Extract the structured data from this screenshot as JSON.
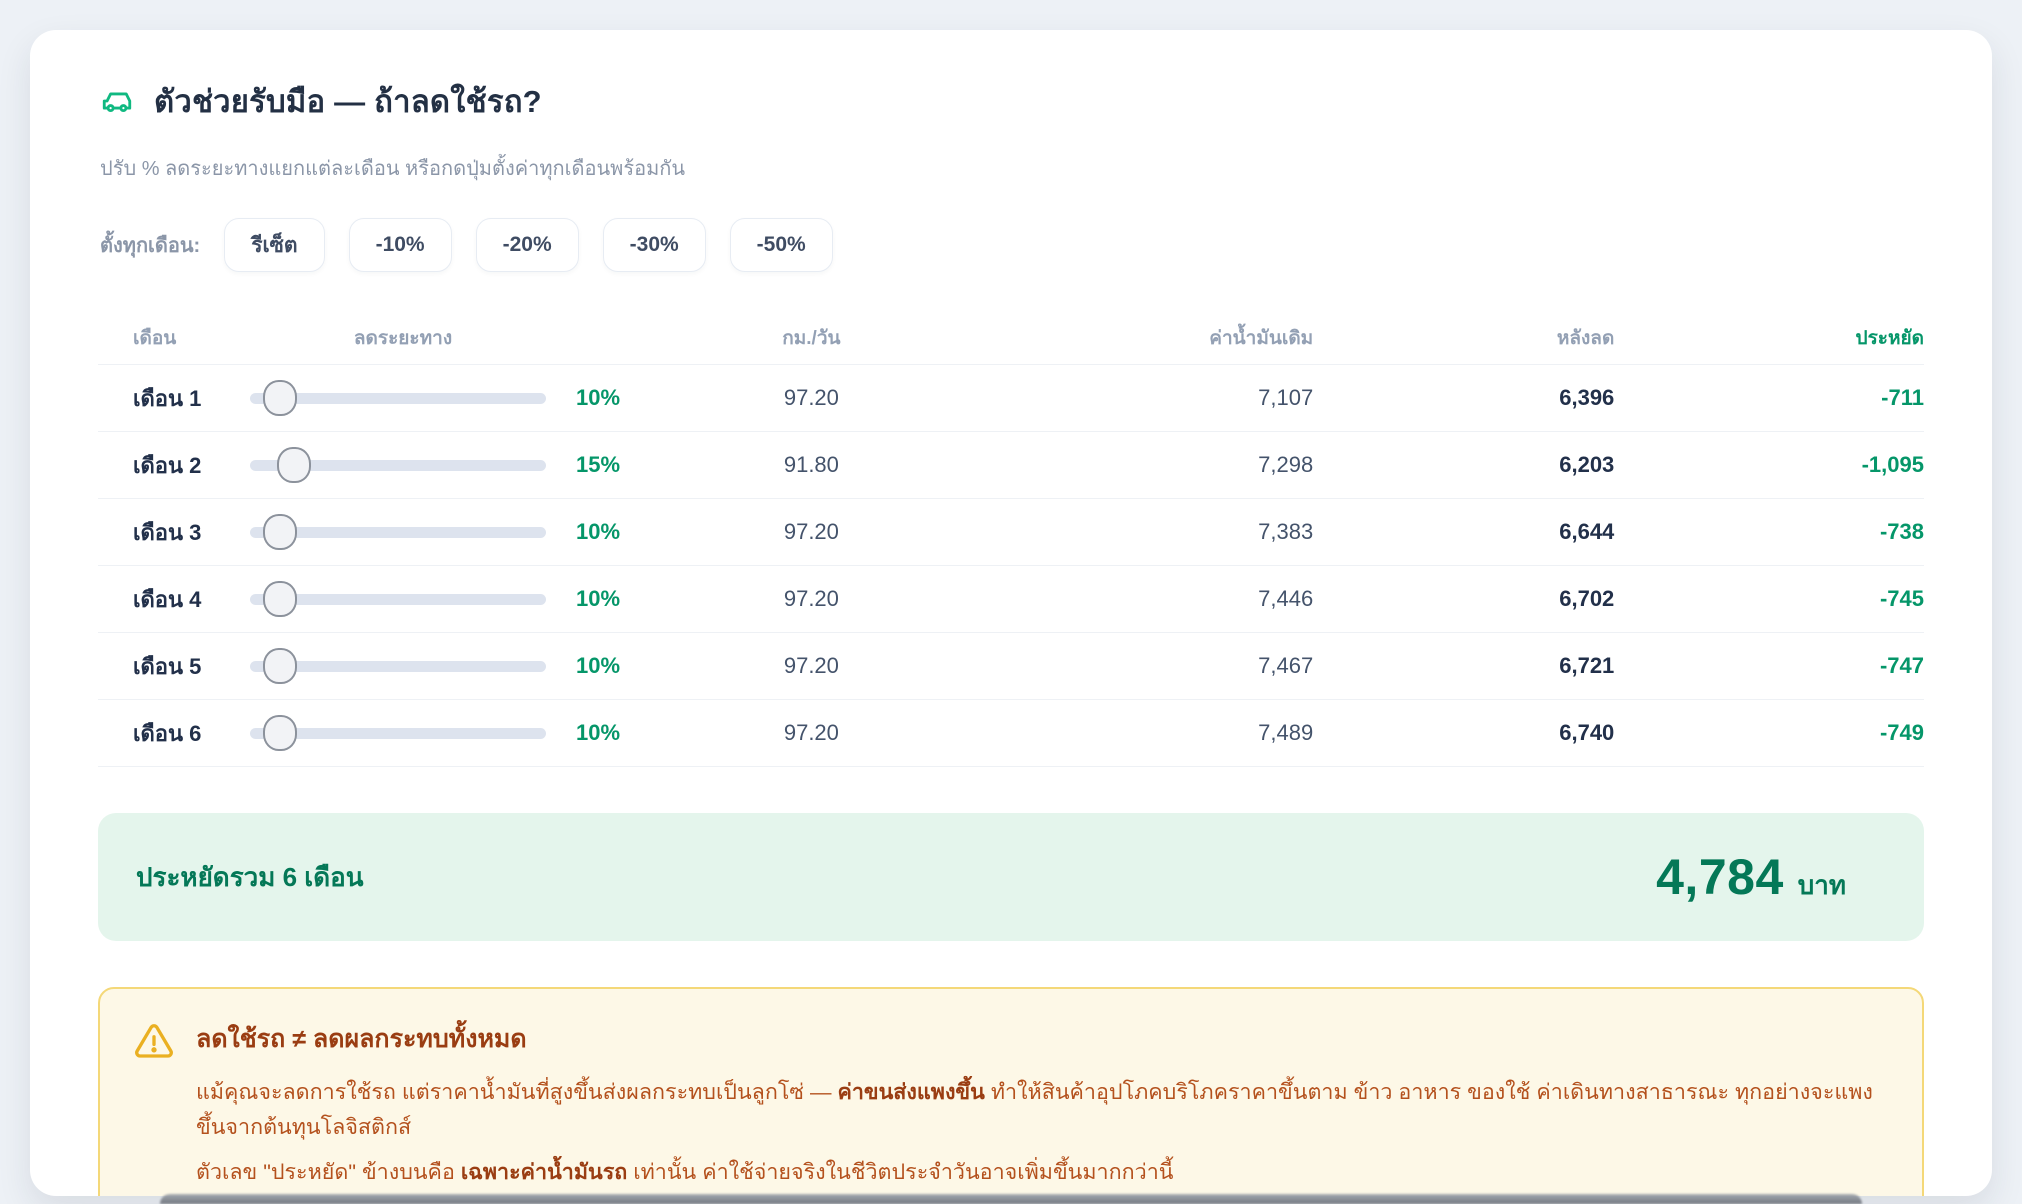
{
  "header": {
    "title": "ตัวช่วยรับมือ — ถ้าลดใช้รถ?",
    "subtitle": "ปรับ % ลดระยะทางแยกแต่ละเดือน หรือกดปุ่มตั้งค่าทุกเดือนพร้อมกัน"
  },
  "quick_set": {
    "label": "ตั้งทุกเดือน:",
    "buttons": [
      {
        "label": "รีเซ็ต"
      },
      {
        "label": "-10%"
      },
      {
        "label": "-20%"
      },
      {
        "label": "-30%"
      },
      {
        "label": "-50%"
      }
    ]
  },
  "table": {
    "headers": {
      "month": "เดือน",
      "slider": "ลดระยะทาง",
      "km_per_day": "กม./วัน",
      "fuel_before": "ค่าน้ำมันเดิม",
      "after": "หลังลด",
      "savings": "ประหยัด"
    },
    "rows": [
      {
        "month": "เดือน 1",
        "pct": 10,
        "pct_label": "10%",
        "km": "97.20",
        "before": "7,107",
        "after": "6,396",
        "save": "-711"
      },
      {
        "month": "เดือน 2",
        "pct": 15,
        "pct_label": "15%",
        "km": "91.80",
        "before": "7,298",
        "after": "6,203",
        "save": "-1,095"
      },
      {
        "month": "เดือน 3",
        "pct": 10,
        "pct_label": "10%",
        "km": "97.20",
        "before": "7,383",
        "after": "6,644",
        "save": "-738"
      },
      {
        "month": "เดือน 4",
        "pct": 10,
        "pct_label": "10%",
        "km": "97.20",
        "before": "7,446",
        "after": "6,702",
        "save": "-745"
      },
      {
        "month": "เดือน 5",
        "pct": 10,
        "pct_label": "10%",
        "km": "97.20",
        "before": "7,467",
        "after": "6,721",
        "save": "-747"
      },
      {
        "month": "เดือน 6",
        "pct": 10,
        "pct_label": "10%",
        "km": "97.20",
        "before": "7,489",
        "after": "6,740",
        "save": "-749"
      }
    ]
  },
  "summary": {
    "label": "ประหยัดรวม 6 เดือน",
    "amount": "4,784",
    "unit": "บาท"
  },
  "warning": {
    "title": "ลดใช้รถ ≠ ลดผลกระทบทั้งหมด",
    "p1_a": "แม้คุณจะลดการใช้รถ แต่ราคาน้ำมันที่สูงขึ้นส่งผลกระทบเป็นลูกโซ่ — ",
    "p1_bold": "ค่าขนส่งแพงขึ้น",
    "p1_b": " ทำให้สินค้าอุปโภคบริโภคราคาขึ้นตาม ข้าว อาหาร ของใช้ ค่าเดินทางสาธารณะ ทุกอย่างจะแพงขึ้นจากต้นทุนโลจิสติกส์",
    "p2_a": "ตัวเลข \"ประหยัด\" ข้างบนคือ ",
    "p2_bold": "เฉพาะค่าน้ำมันรถ",
    "p2_b": " เท่านั้น ค่าใช้จ่ายจริงในชีวิตประจำวันอาจเพิ่มขึ้นมากกว่านี้"
  },
  "colors": {
    "accent_green": "#059669",
    "summary_green": "#047857",
    "summary_bg": "#e4f5ec",
    "warning_bg": "#fdf8e7",
    "warning_border": "#f4d878",
    "warning_text": "#b4511d",
    "warning_title": "#9a3d12",
    "page_bg": "#edf1f6"
  }
}
